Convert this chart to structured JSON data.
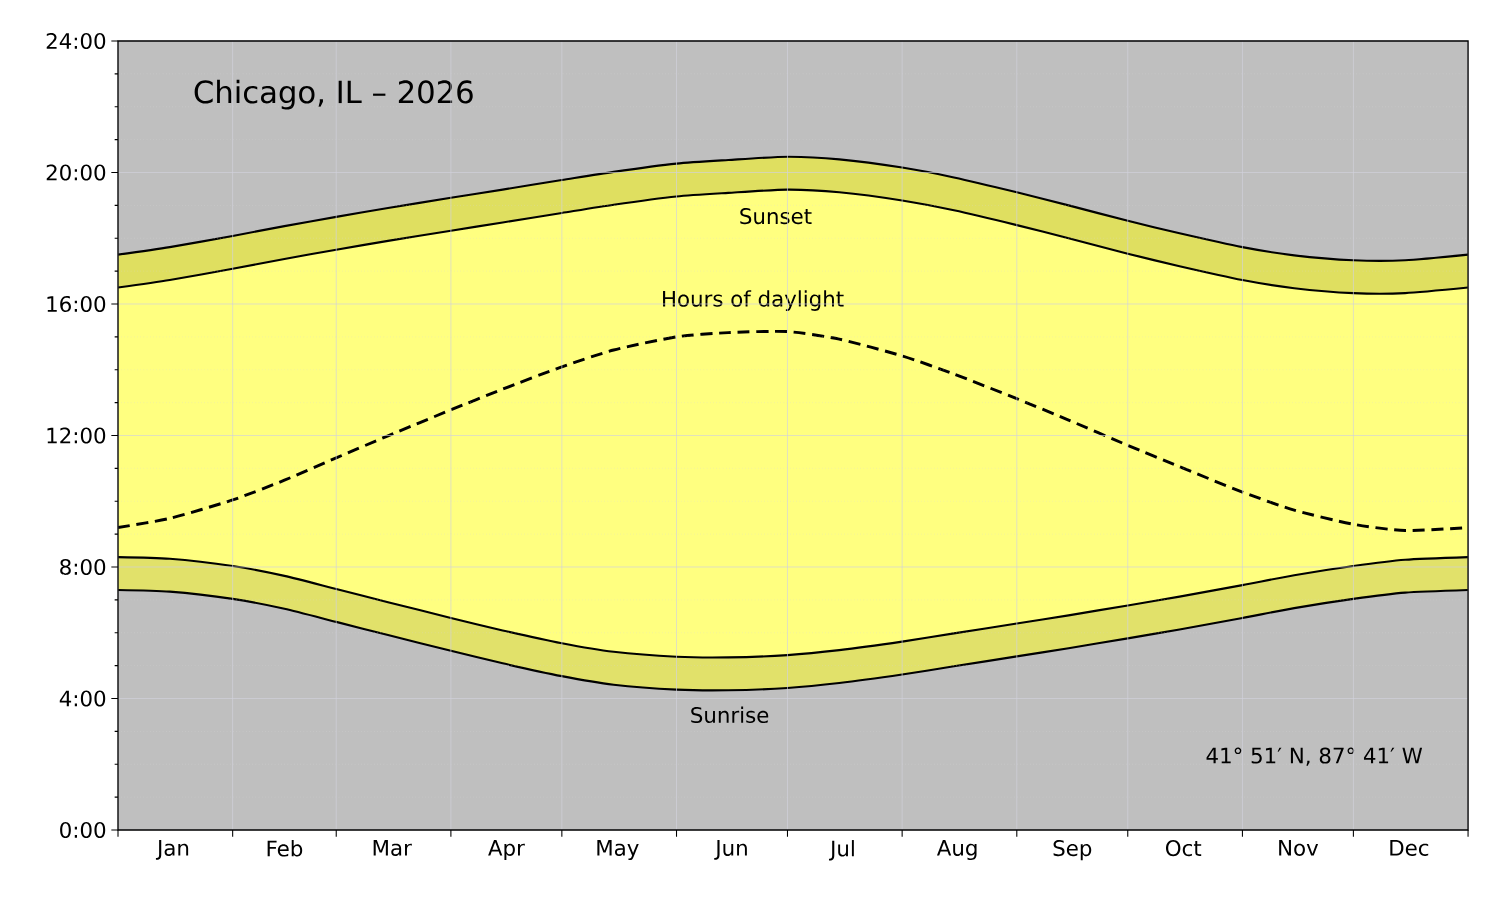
{
  "chart_data": {
    "type": "area",
    "title": "Chicago, IL – 2026",
    "x": [
      "2026-01-01",
      "2026-01-15",
      "2026-02-01",
      "2026-02-15",
      "2026-03-01",
      "2026-03-15",
      "2026-04-01",
      "2026-04-15",
      "2026-05-01",
      "2026-05-15",
      "2026-06-01",
      "2026-06-15",
      "2026-07-01",
      "2026-07-15",
      "2026-08-01",
      "2026-08-15",
      "2026-09-01",
      "2026-09-15",
      "2026-10-01",
      "2026-10-15",
      "2026-11-01",
      "2026-11-15",
      "2026-12-01",
      "2026-12-15",
      "2027-01-01"
    ],
    "series": [
      {
        "type": "line",
        "color": "#000000",
        "values": [
          7.3,
          7.25,
          7.03,
          6.73,
          6.33,
          5.93,
          5.45,
          5.07,
          4.68,
          4.42,
          4.27,
          4.25,
          4.32,
          4.47,
          4.73,
          4.98,
          5.28,
          5.53,
          5.83,
          6.1,
          6.45,
          6.75,
          7.03,
          7.22,
          7.3
        ]
      },
      {
        "color": "#e1e16a",
        "values": [
          8.3,
          8.25,
          8.03,
          7.73,
          7.33,
          6.93,
          6.45,
          6.07,
          5.68,
          5.42,
          5.27,
          5.25,
          5.32,
          5.47,
          5.73,
          5.98,
          6.28,
          6.53,
          6.83,
          7.1,
          7.45,
          7.75,
          8.03,
          8.22,
          8.3
        ]
      },
      {
        "color": "#ffff80",
        "values": [
          16.5,
          16.73,
          17.07,
          17.37,
          17.65,
          17.92,
          18.23,
          18.48,
          18.77,
          19.02,
          19.27,
          19.38,
          19.48,
          19.4,
          19.15,
          18.85,
          18.4,
          18.0,
          17.53,
          17.15,
          16.73,
          16.48,
          16.33,
          16.33,
          16.5
        ]
      },
      {
        "color": "#dfdf60",
        "values": [
          17.5,
          17.73,
          18.07,
          18.37,
          18.65,
          18.92,
          19.23,
          19.48,
          19.77,
          20.02,
          20.27,
          20.38,
          20.48,
          20.4,
          20.15,
          19.85,
          19.4,
          19.0,
          18.53,
          18.15,
          17.73,
          17.48,
          17.33,
          17.33,
          17.5
        ]
      },
      {
        "type": "line",
        "color": "#000000",
        "line_style": "dashed",
        "values": [
          9.2,
          9.48,
          10.04,
          10.64,
          11.32,
          11.99,
          12.78,
          13.41,
          14.09,
          14.6,
          15.0,
          15.13,
          15.16,
          14.93,
          14.42,
          13.87,
          13.12,
          12.47,
          11.7,
          11.05,
          10.28,
          9.73,
          9.3,
          9.11,
          9.2
        ]
      }
    ],
    "annotations": [
      "Sunset",
      "Hours of daylight",
      "Sunrise",
      "41° 51′ N,  87° 41′ W"
    ],
    "xlim": [
      "2026-01-01",
      "2027-01-01"
    ],
    "xticks": [
      {
        "value": "2026-01-01",
        "label": null
      },
      {
        "value": "2026-01-16",
        "label": "Jan"
      },
      {
        "value": "2026-02-01",
        "label": null
      },
      {
        "value": "2026-02-15",
        "label": "Feb"
      },
      {
        "value": "2026-03-01",
        "label": null
      },
      {
        "value": "2026-03-16",
        "label": "Mar"
      },
      {
        "value": "2026-04-01",
        "label": null
      },
      {
        "value": "2026-04-16",
        "label": "Apr"
      },
      {
        "value": "2026-05-01",
        "label": null
      },
      {
        "value": "2026-05-16",
        "label": "May"
      },
      {
        "value": "2026-06-01",
        "label": null
      },
      {
        "value": "2026-06-16",
        "label": "Jun"
      },
      {
        "value": "2026-07-01",
        "label": null
      },
      {
        "value": "2026-07-16",
        "label": "Jul"
      },
      {
        "value": "2026-08-01",
        "label": null
      },
      {
        "value": "2026-08-16",
        "label": "Aug"
      },
      {
        "value": "2026-09-01",
        "label": null
      },
      {
        "value": "2026-09-16",
        "label": "Sep"
      },
      {
        "value": "2026-10-01",
        "label": null
      },
      {
        "value": "2026-10-16",
        "label": "Oct"
      },
      {
        "value": "2026-11-01",
        "label": null
      },
      {
        "value": "2026-11-16",
        "label": "Nov"
      },
      {
        "value": "2026-12-01",
        "label": null
      },
      {
        "value": "2026-12-16",
        "label": "Dec"
      },
      {
        "value": "2027-01-01",
        "label": null
      }
    ],
    "ylim": [
      0,
      24
    ],
    "yticks": [
      {
        "value": 0,
        "label": "0:00"
      },
      {
        "value": 1,
        "label": null
      },
      {
        "value": 2,
        "label": null
      },
      {
        "value": 3,
        "label": null
      },
      {
        "value": 4,
        "label": "4:00"
      },
      {
        "value": 5,
        "label": null
      },
      {
        "value": 6,
        "label": null
      },
      {
        "value": 7,
        "label": null
      },
      {
        "value": 8,
        "label": "8:00"
      },
      {
        "value": 9,
        "label": null
      },
      {
        "value": 10,
        "label": null
      },
      {
        "value": 11,
        "label": null
      },
      {
        "value": 12,
        "label": "12:00"
      },
      {
        "value": 13,
        "label": null
      },
      {
        "value": 14,
        "label": null
      },
      {
        "value": 15,
        "label": null
      },
      {
        "value": 16,
        "label": "16:00"
      },
      {
        "value": 17,
        "label": null
      },
      {
        "value": 18,
        "label": null
      },
      {
        "value": 19,
        "label": null
      },
      {
        "value": 20,
        "label": "20:00"
      },
      {
        "value": 21,
        "label": null
      },
      {
        "value": 22,
        "label": null
      },
      {
        "value": 23,
        "label": null
      },
      {
        "value": 24,
        "label": "24:00"
      }
    ],
    "grid": true
  }
}
